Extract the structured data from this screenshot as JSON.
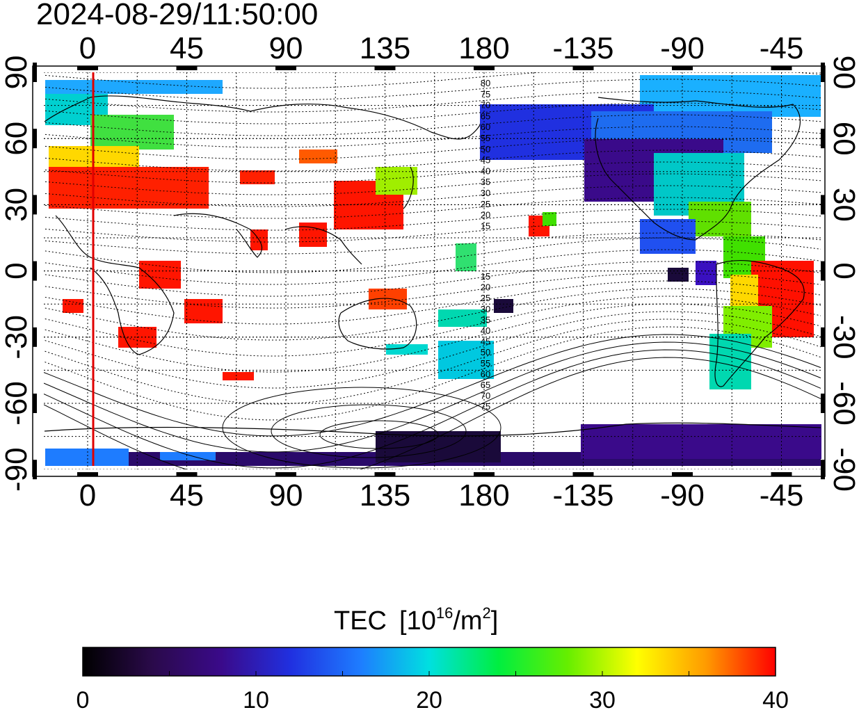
{
  "timestamp": "2024-08-29/11:50:00",
  "top_axis_labels": [
    "0",
    "45",
    "90",
    "135",
    "180",
    "-135",
    "-90",
    "-45"
  ],
  "bottom_axis_labels": [
    "0",
    "45",
    "90",
    "135",
    "180",
    "-135",
    "-90",
    "-45"
  ],
  "left_axis_labels": [
    "90",
    "60",
    "30",
    "0",
    "-30",
    "-60",
    "-90"
  ],
  "right_axis_labels": [
    "90",
    "60",
    "30",
    "0",
    "-30",
    "-60",
    "-90"
  ],
  "contour_labels_north": [
    "80",
    "75",
    "70",
    "65",
    "60",
    "55",
    "50",
    "45",
    "40",
    "35",
    "30",
    "25",
    "20",
    "15"
  ],
  "contour_labels_south": [
    "15",
    "20",
    "25",
    "30",
    "35",
    "40",
    "45",
    "50",
    "55",
    "60",
    "65",
    "70",
    "75"
  ],
  "colorbar": {
    "title": "TEC",
    "unit_open": "[10",
    "unit_exp": "16",
    "unit_mid": "/m",
    "unit_exp2": "2",
    "unit_close": "]",
    "tick_labels": [
      "0",
      "10",
      "20",
      "30",
      "40"
    ],
    "min": 0,
    "max": 40,
    "colors": [
      "#000000",
      "#2a0a4a",
      "#3a0a8a",
      "#2030e0",
      "#1e7cff",
      "#00e0e0",
      "#00ee40",
      "#66ee00",
      "#ffff00",
      "#ff9a00",
      "#ff0000"
    ]
  },
  "colors": {
    "terminator_line": "#e00000",
    "coastline": "#000000",
    "grid": "#000000"
  }
}
